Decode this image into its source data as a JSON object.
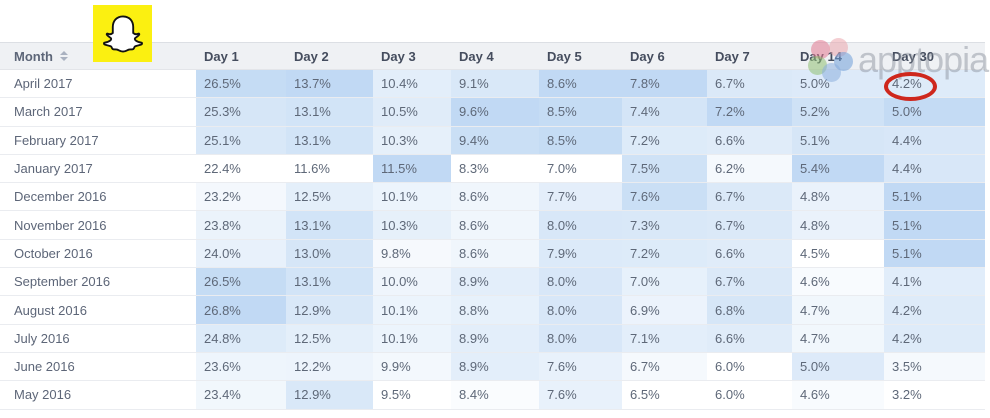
{
  "branding": {
    "logo_icon": "snapchat-ghost-icon"
  },
  "watermark": {
    "text": "apptopia",
    "icon": "apptopia-flower-icon"
  },
  "table": {
    "month_header": "Month",
    "sort_icon": "sort-arrows-icon",
    "day_columns": [
      "Day 1",
      "Day 2",
      "Day 3",
      "Day 4",
      "Day 5",
      "Day 6",
      "Day 7",
      "Day 14",
      "Day 30"
    ],
    "rows": [
      {
        "month": "April 2017",
        "values": [
          "26.5%",
          "13.7%",
          "10.4%",
          "9.1%",
          "8.6%",
          "7.8%",
          "6.7%",
          "5.0%",
          "4.2%"
        ]
      },
      {
        "month": "March 2017",
        "values": [
          "25.3%",
          "13.1%",
          "10.5%",
          "9.6%",
          "8.5%",
          "7.4%",
          "7.2%",
          "5.2%",
          "5.0%"
        ]
      },
      {
        "month": "February 2017",
        "values": [
          "25.1%",
          "13.1%",
          "10.3%",
          "9.4%",
          "8.5%",
          "7.2%",
          "6.6%",
          "5.1%",
          "4.4%"
        ]
      },
      {
        "month": "January 2017",
        "values": [
          "22.4%",
          "11.6%",
          "11.5%",
          "8.3%",
          "7.0%",
          "7.5%",
          "6.2%",
          "5.4%",
          "4.4%"
        ]
      },
      {
        "month": "December 2016",
        "values": [
          "23.2%",
          "12.5%",
          "10.1%",
          "8.6%",
          "7.7%",
          "7.6%",
          "6.7%",
          "4.8%",
          "5.1%"
        ]
      },
      {
        "month": "November 2016",
        "values": [
          "23.8%",
          "13.1%",
          "10.3%",
          "8.6%",
          "8.0%",
          "7.3%",
          "6.7%",
          "4.8%",
          "5.1%"
        ]
      },
      {
        "month": "October 2016",
        "values": [
          "24.0%",
          "13.0%",
          "9.8%",
          "8.6%",
          "7.9%",
          "7.2%",
          "6.6%",
          "4.5%",
          "5.1%"
        ]
      },
      {
        "month": "September 2016",
        "values": [
          "26.5%",
          "13.1%",
          "10.0%",
          "8.9%",
          "8.0%",
          "7.0%",
          "6.7%",
          "4.6%",
          "4.1%"
        ]
      },
      {
        "month": "August 2016",
        "values": [
          "26.8%",
          "12.9%",
          "10.1%",
          "8.8%",
          "8.0%",
          "6.9%",
          "6.8%",
          "4.7%",
          "4.2%"
        ]
      },
      {
        "month": "July 2016",
        "values": [
          "24.8%",
          "12.5%",
          "10.1%",
          "8.9%",
          "8.0%",
          "7.1%",
          "6.6%",
          "4.7%",
          "4.2%"
        ]
      },
      {
        "month": "June 2016",
        "values": [
          "23.6%",
          "12.2%",
          "9.9%",
          "8.9%",
          "7.6%",
          "6.7%",
          "6.0%",
          "5.0%",
          "3.5%"
        ]
      },
      {
        "month": "May 2016",
        "values": [
          "23.4%",
          "12.9%",
          "9.5%",
          "8.4%",
          "7.6%",
          "6.5%",
          "6.0%",
          "4.6%",
          "3.2%"
        ]
      }
    ],
    "highlighted_cell": {
      "month": "April 2017",
      "column": "Day 30",
      "value": "4.2%"
    }
  },
  "colors": {
    "snapchat_yellow": "#fbf011",
    "heatmap_blue": "#6ba5e4",
    "highlight_red": "#ce271d",
    "header_bg": "#eff1f4"
  }
}
